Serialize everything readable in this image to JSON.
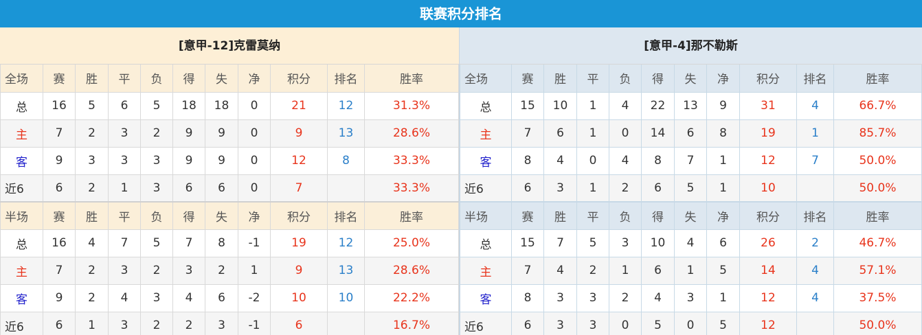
{
  "title": "联赛积分排名",
  "colors": {
    "title_bg": "#1a95d6",
    "points": "#e8341c",
    "rank": "#2a7fc9",
    "home": "#e8341c",
    "away": "#2222cc"
  },
  "columns": [
    "赛",
    "胜",
    "平",
    "负",
    "得",
    "失",
    "净",
    "积分",
    "排名",
    "胜率"
  ],
  "teams": [
    {
      "name": "[意甲-12]克雷莫纳",
      "sections": [
        {
          "label": "全场",
          "rows": [
            {
              "label": "总",
              "values": [
                "16",
                "5",
                "6",
                "5",
                "18",
                "18",
                "0",
                "21",
                "12",
                "31.3%"
              ]
            },
            {
              "label": "主",
              "values": [
                "7",
                "2",
                "3",
                "2",
                "9",
                "9",
                "0",
                "9",
                "13",
                "28.6%"
              ]
            },
            {
              "label": "客",
              "values": [
                "9",
                "3",
                "3",
                "3",
                "9",
                "9",
                "0",
                "12",
                "8",
                "33.3%"
              ]
            },
            {
              "label": "近6",
              "values": [
                "6",
                "2",
                "1",
                "3",
                "6",
                "6",
                "0",
                "7",
                "",
                "33.3%"
              ]
            }
          ]
        },
        {
          "label": "半场",
          "rows": [
            {
              "label": "总",
              "values": [
                "16",
                "4",
                "7",
                "5",
                "7",
                "8",
                "-1",
                "19",
                "12",
                "25.0%"
              ]
            },
            {
              "label": "主",
              "values": [
                "7",
                "2",
                "3",
                "2",
                "3",
                "2",
                "1",
                "9",
                "13",
                "28.6%"
              ]
            },
            {
              "label": "客",
              "values": [
                "9",
                "2",
                "4",
                "3",
                "4",
                "6",
                "-2",
                "10",
                "10",
                "22.2%"
              ]
            },
            {
              "label": "近6",
              "values": [
                "6",
                "1",
                "3",
                "2",
                "2",
                "3",
                "-1",
                "6",
                "",
                "16.7%"
              ]
            }
          ]
        }
      ]
    },
    {
      "name": "[意甲-4]那不勒斯",
      "sections": [
        {
          "label": "全场",
          "rows": [
            {
              "label": "总",
              "values": [
                "15",
                "10",
                "1",
                "4",
                "22",
                "13",
                "9",
                "31",
                "4",
                "66.7%"
              ]
            },
            {
              "label": "主",
              "values": [
                "7",
                "6",
                "1",
                "0",
                "14",
                "6",
                "8",
                "19",
                "1",
                "85.7%"
              ]
            },
            {
              "label": "客",
              "values": [
                "8",
                "4",
                "0",
                "4",
                "8",
                "7",
                "1",
                "12",
                "7",
                "50.0%"
              ]
            },
            {
              "label": "近6",
              "values": [
                "6",
                "3",
                "1",
                "2",
                "6",
                "5",
                "1",
                "10",
                "",
                "50.0%"
              ]
            }
          ]
        },
        {
          "label": "半场",
          "rows": [
            {
              "label": "总",
              "values": [
                "15",
                "7",
                "5",
                "3",
                "10",
                "4",
                "6",
                "26",
                "2",
                "46.7%"
              ]
            },
            {
              "label": "主",
              "values": [
                "7",
                "4",
                "2",
                "1",
                "6",
                "1",
                "5",
                "14",
                "4",
                "57.1%"
              ]
            },
            {
              "label": "客",
              "values": [
                "8",
                "3",
                "3",
                "2",
                "4",
                "3",
                "1",
                "12",
                "4",
                "37.5%"
              ]
            },
            {
              "label": "近6",
              "values": [
                "6",
                "3",
                "3",
                "0",
                "5",
                "0",
                "5",
                "12",
                "",
                "50.0%"
              ]
            }
          ]
        }
      ]
    }
  ]
}
